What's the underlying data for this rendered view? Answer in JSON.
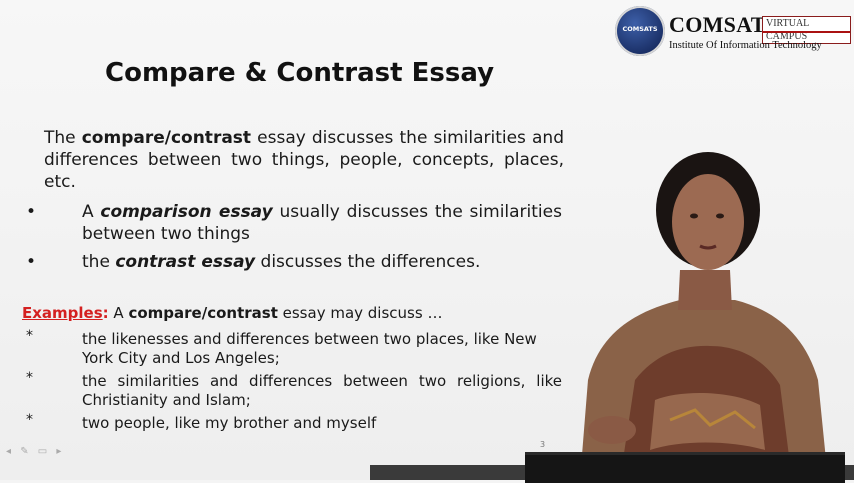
{
  "logo": {
    "globe_text": "COMSATS",
    "name": "COMSATS",
    "tag": "VIRTUAL CAMPUS",
    "subtitle": "Institute Of Information Technology"
  },
  "slide": {
    "title": "Compare & Contrast Essay",
    "intro": {
      "pre": "The ",
      "bold": "compare/contrast",
      "post": " essay discusses the similarities and differences between two things, people, concepts, places, etc."
    },
    "bullets": [
      {
        "marker": "•",
        "pre": "A ",
        "emph": "comparison essay",
        "post": " usually discusses the similarities between two things"
      },
      {
        "marker": "•",
        "pre": "the ",
        "emph": "contrast essay",
        "post": " discusses the differences."
      }
    ],
    "examples": {
      "label": "Examples",
      "colon": ":",
      "pre": " A ",
      "bold": "compare/contrast",
      "post": " essay may discuss …",
      "items": [
        {
          "marker": "*",
          "text": "the likenesses and differences between two places, like New York City and Los Angeles;"
        },
        {
          "marker": "*",
          "text": "the similarities and differences between two religions, like Christianity and Islam;"
        },
        {
          "marker": "*",
          "text": "two people, like my brother and myself"
        }
      ]
    },
    "page_number": "3",
    "controls": "◂ ✎ ▭ ▸"
  },
  "colors": {
    "example_label": "#d42020",
    "logo_navy": "#1a2f66",
    "logo_red": "#aa1111"
  }
}
